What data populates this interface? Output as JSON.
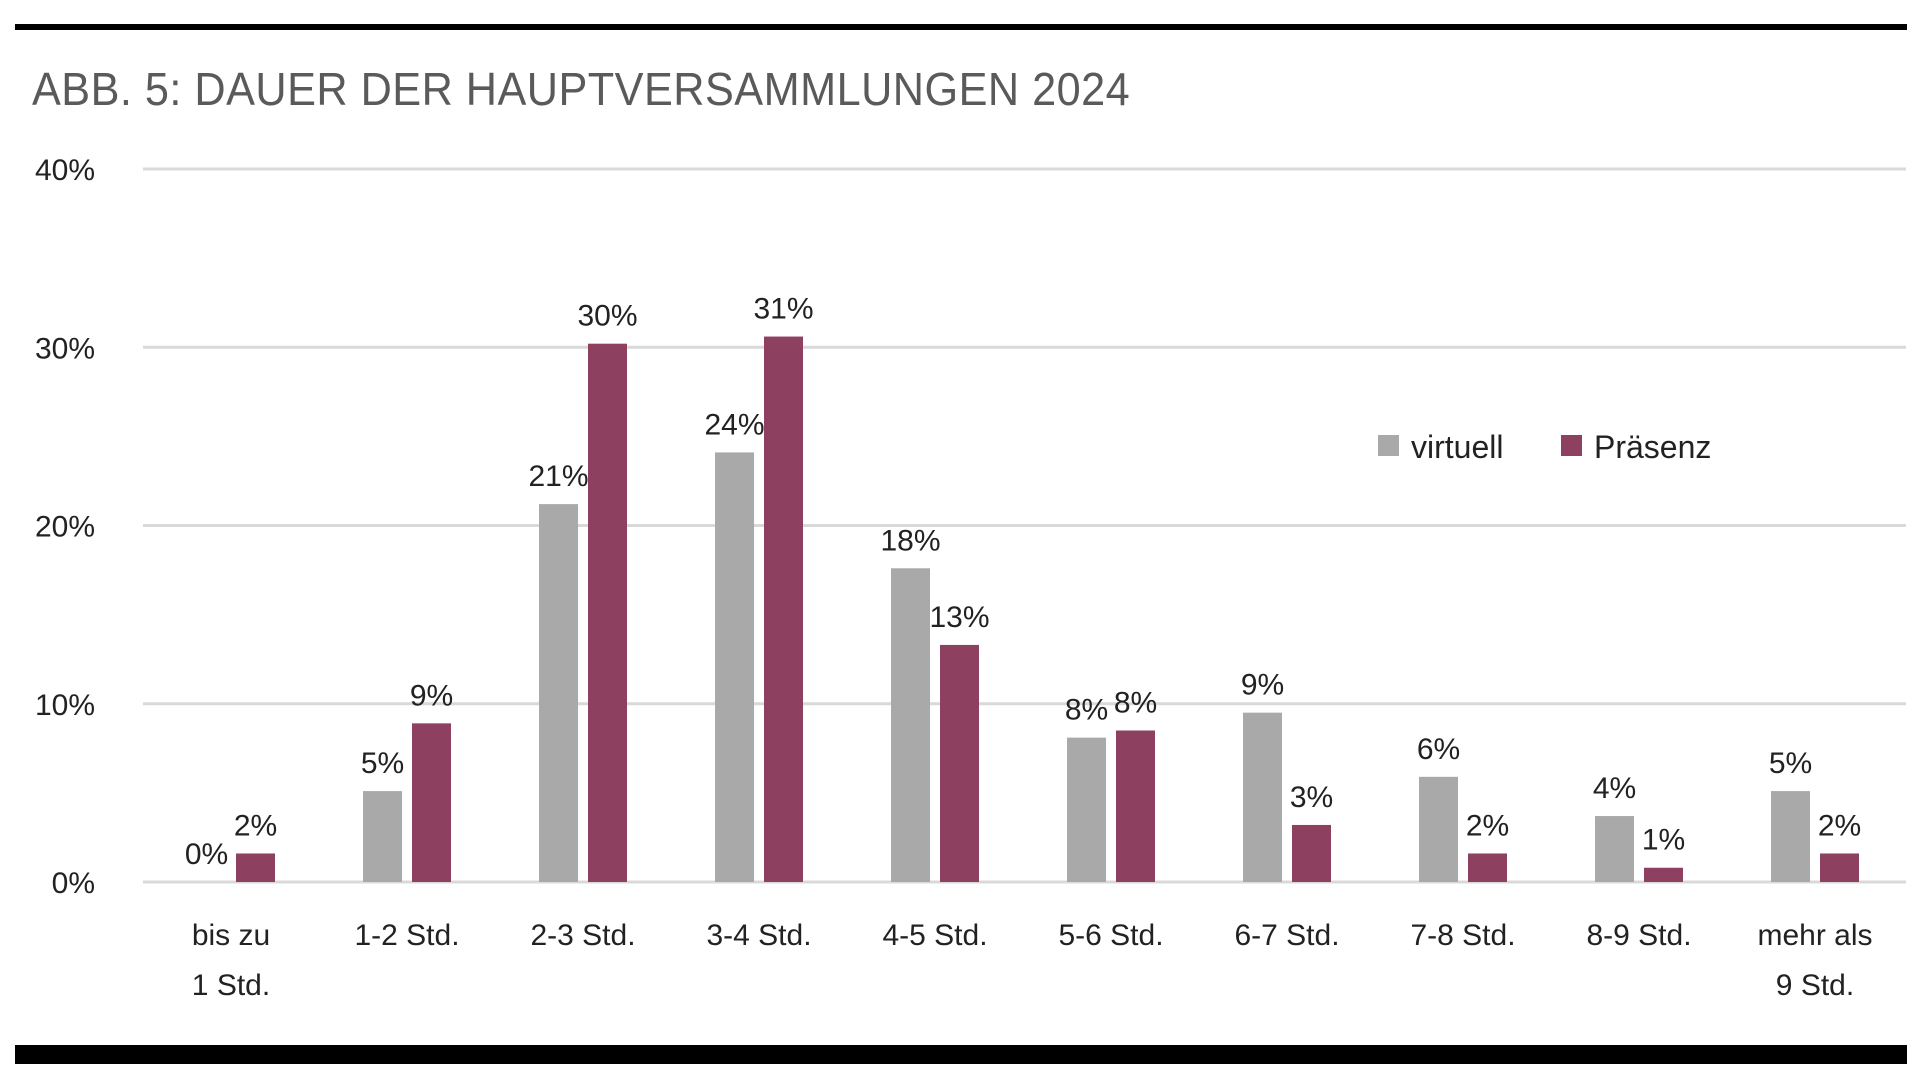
{
  "title": "ABB. 5: DAUER DER HAUPTVERSAMMLUNGEN 2024",
  "chart_data": {
    "type": "bar",
    "title": "ABB. 5: DAUER DER HAUPTVERSAMMLUNGEN 2024",
    "xlabel": "",
    "ylabel": "",
    "ylim": [
      0,
      40
    ],
    "yticks": [
      "0%",
      "10%",
      "20%",
      "30%",
      "40%"
    ],
    "grid": true,
    "legend_position": "right",
    "categories": [
      [
        "bis zu",
        "1 Std."
      ],
      [
        "1-2 Std."
      ],
      [
        "2-3 Std."
      ],
      [
        "3-4 Std."
      ],
      [
        "4-5 Std."
      ],
      [
        "5-6 Std."
      ],
      [
        "6-7 Std."
      ],
      [
        "7-8 Std."
      ],
      [
        "8-9 Std."
      ],
      [
        "mehr als",
        "9 Std."
      ]
    ],
    "series": [
      {
        "name": "virtuell",
        "color": "#a9a9a9",
        "values": [
          0,
          5.1,
          21.2,
          24.1,
          17.6,
          8.1,
          9.5,
          5.9,
          3.7,
          5.1
        ],
        "labels": [
          "0%",
          "5%",
          "21%",
          "24%",
          "18%",
          "8%",
          "9%",
          "6%",
          "4%",
          "5%"
        ]
      },
      {
        "name": "Präsenz",
        "color": "#8e4060",
        "values": [
          1.6,
          8.9,
          30.2,
          30.6,
          13.3,
          8.5,
          3.2,
          1.6,
          0.8,
          1.6
        ],
        "labels": [
          "2%",
          "9%",
          "30%",
          "31%",
          "13%",
          "8%",
          "3%",
          "2%",
          "1%",
          "2%"
        ]
      }
    ]
  }
}
